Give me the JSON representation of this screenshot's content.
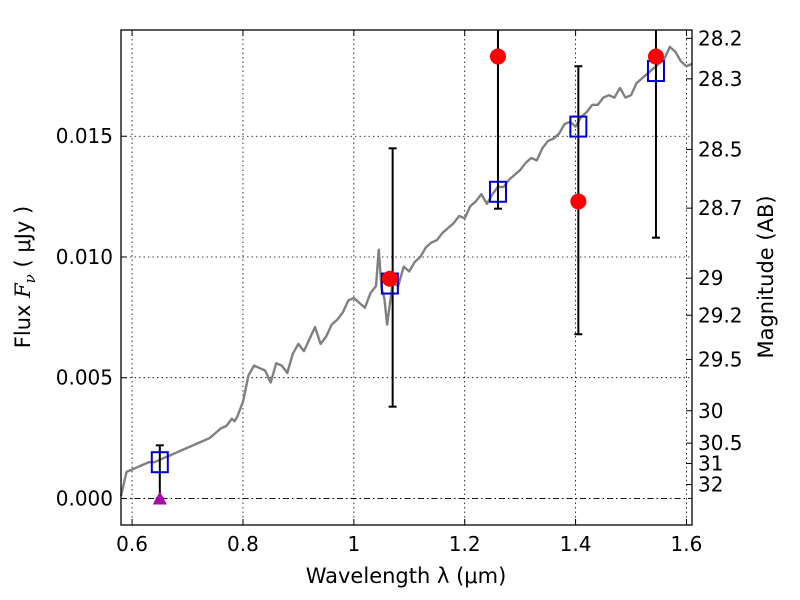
{
  "chart_data": {
    "type": "scatter",
    "xlabel": "Wavelength  λ (μm)",
    "ylabel": "Flux  F_ν  ( μJy )",
    "ylabel_parts": {
      "prefix": "Flux  ",
      "symbol": "F",
      "sub": "ν",
      "suffix": "  ( μJy )"
    },
    "y2label": "Magnitude (AB)",
    "xlim": [
      0.58,
      1.61
    ],
    "ylim": [
      -0.0011,
      0.0194
    ],
    "x_ticks": [
      0.6,
      0.8,
      1.0,
      1.2,
      1.4,
      1.6
    ],
    "x_tick_labels": [
      "0.6",
      "0.8",
      "1",
      "1.2",
      "1.4",
      "1.6"
    ],
    "y_ticks": [
      0.0,
      0.005,
      0.01,
      0.015
    ],
    "y_tick_labels": [
      "0.000",
      "0.005",
      "0.010",
      "0.015"
    ],
    "y2_tick_labels": [
      "28.2",
      "28.3",
      "28.5",
      "28.7",
      "29",
      "29.2",
      "29.5",
      "30",
      "30.5",
      "31",
      "32"
    ],
    "y2_tick_values": [
      28.2,
      28.3,
      28.5,
      28.7,
      29,
      29.2,
      29.5,
      30,
      30.5,
      31,
      32
    ],
    "grid": true,
    "series": [
      {
        "kind": "line",
        "color": "#808080",
        "x": [
          0.58,
          0.59,
          0.6,
          0.61,
          0.62,
          0.63,
          0.64,
          0.65,
          0.66,
          0.67,
          0.68,
          0.69,
          0.7,
          0.71,
          0.72,
          0.73,
          0.74,
          0.75,
          0.76,
          0.77,
          0.78,
          0.785,
          0.79,
          0.8,
          0.81,
          0.82,
          0.83,
          0.84,
          0.85,
          0.86,
          0.87,
          0.88,
          0.89,
          0.9,
          0.91,
          0.92,
          0.93,
          0.94,
          0.95,
          0.96,
          0.97,
          0.98,
          0.99,
          1.0,
          1.01,
          1.02,
          1.03,
          1.04,
          1.045,
          1.05,
          1.055,
          1.06,
          1.07,
          1.08,
          1.09,
          1.1,
          1.11,
          1.12,
          1.13,
          1.14,
          1.15,
          1.16,
          1.17,
          1.18,
          1.19,
          1.2,
          1.21,
          1.22,
          1.23,
          1.24,
          1.25,
          1.26,
          1.27,
          1.28,
          1.29,
          1.3,
          1.31,
          1.32,
          1.33,
          1.34,
          1.35,
          1.36,
          1.37,
          1.38,
          1.39,
          1.4,
          1.41,
          1.42,
          1.43,
          1.44,
          1.45,
          1.46,
          1.47,
          1.48,
          1.49,
          1.5,
          1.51,
          1.52,
          1.53,
          1.54,
          1.55,
          1.56,
          1.57,
          1.58,
          1.59,
          1.6,
          1.61
        ],
        "y": [
          0.0001,
          0.0011,
          0.0012,
          0.0013,
          0.0014,
          0.0015,
          0.0015,
          0.0016,
          0.0017,
          0.0018,
          0.0019,
          0.002,
          0.0021,
          0.0022,
          0.0023,
          0.0024,
          0.0025,
          0.0027,
          0.0029,
          0.003,
          0.0033,
          0.0032,
          0.0034,
          0.004,
          0.0051,
          0.0055,
          0.0054,
          0.0053,
          0.0048,
          0.0056,
          0.0055,
          0.0052,
          0.006,
          0.0064,
          0.0061,
          0.0066,
          0.0071,
          0.0064,
          0.0067,
          0.0072,
          0.0074,
          0.0077,
          0.0082,
          0.0083,
          0.0081,
          0.0079,
          0.0085,
          0.0088,
          0.0103,
          0.0087,
          0.0083,
          0.0072,
          0.0089,
          0.0088,
          0.0096,
          0.0094,
          0.0098,
          0.01,
          0.0104,
          0.0106,
          0.0107,
          0.011,
          0.0112,
          0.0114,
          0.0117,
          0.0116,
          0.0121,
          0.0123,
          0.0126,
          0.0122,
          0.0126,
          0.0129,
          0.0129,
          0.0132,
          0.0134,
          0.0136,
          0.0139,
          0.0141,
          0.014,
          0.0145,
          0.0148,
          0.0149,
          0.0151,
          0.0155,
          0.0156,
          0.0154,
          0.0158,
          0.016,
          0.0163,
          0.0163,
          0.0166,
          0.0167,
          0.0166,
          0.017,
          0.0166,
          0.0167,
          0.0172,
          0.0174,
          0.0176,
          0.0178,
          0.018,
          0.0182,
          0.0187,
          0.0185,
          0.0181,
          0.0179,
          0.018
        ]
      },
      {
        "kind": "errorbar",
        "color": "#000000",
        "bars": [
          {
            "x": 0.65,
            "ylow": 0.0,
            "yhigh": 0.0022
          },
          {
            "x": 1.07,
            "ylow": 0.0038,
            "yhigh": 0.0145
          },
          {
            "x": 1.26,
            "ylow": 0.012,
            "yhigh": 0.0194
          },
          {
            "x": 1.405,
            "ylow": 0.0068,
            "yhigh": 0.0179
          },
          {
            "x": 1.545,
            "ylow": 0.0108,
            "yhigh": 0.0194
          }
        ]
      },
      {
        "kind": "marker",
        "marker": "square",
        "color": "#0000cc",
        "x": [
          0.65,
          1.065,
          1.26,
          1.405,
          1.545
        ],
        "y": [
          0.0015,
          0.0089,
          0.0127,
          0.0154,
          0.0177
        ]
      },
      {
        "kind": "marker",
        "marker": "circle",
        "color": "#ff0000",
        "x": [
          1.065,
          1.26,
          1.405,
          1.545
        ],
        "y": [
          0.0091,
          0.0183,
          0.0123,
          0.0183
        ]
      },
      {
        "kind": "marker",
        "marker": "triangle",
        "color": "#aa00aa",
        "x": [
          0.65
        ],
        "y": [
          0.0
        ]
      }
    ],
    "zero_line": {
      "y": 0.0,
      "style": "dash-dot"
    }
  }
}
